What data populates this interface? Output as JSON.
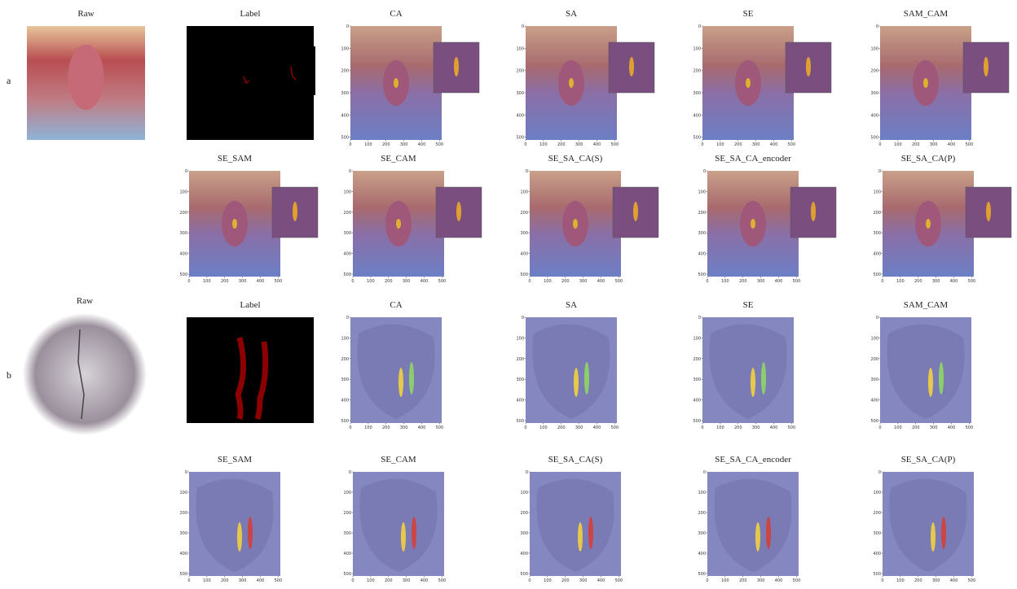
{
  "groups": [
    {
      "label": "a",
      "rows": [
        [
          "Raw",
          "Label",
          "CA",
          "SA",
          "SE",
          "SAM_CAM"
        ],
        [
          "SE_SAM",
          "SE_CAM",
          "SE_SA_CA(S)",
          "SE_SA_CA_encoder",
          "SE_SA_CA(P)"
        ]
      ]
    },
    {
      "label": "b",
      "rows": [
        [
          "Raw",
          "Label",
          "CA",
          "SA",
          "SE",
          "SAM_CAM"
        ],
        [
          "SE_SAM",
          "SE_CAM",
          "SE_SA_CA(S)",
          "SE_SA_CA_encoder",
          "SE_SA_CA(P)"
        ]
      ]
    }
  ],
  "axis_ticks": [
    0,
    100,
    200,
    300,
    400,
    500
  ]
}
